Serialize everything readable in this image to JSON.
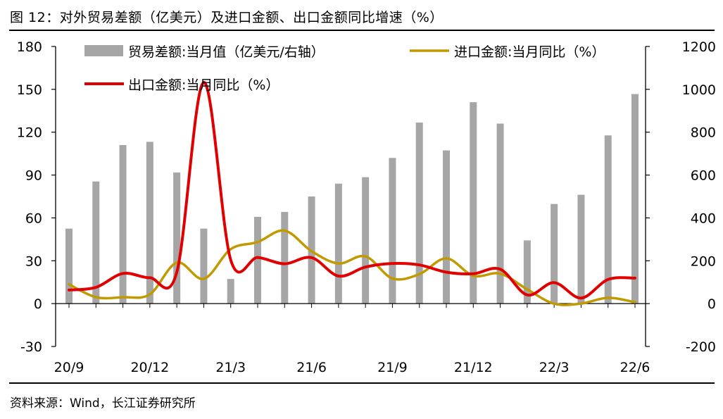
{
  "header": {
    "title": "图 12：对外贸易差额（亿美元）及进口金额、出口金额同比增速（%）"
  },
  "footer": {
    "source": "资料来源：Wind，长江证券研究所"
  },
  "colors": {
    "bars": "#a6a6a6",
    "import_line": "#c09a00",
    "export_line": "#e00000",
    "axis": "#000000"
  },
  "chart_data": {
    "type": "bar+line",
    "title": "对外贸易差额（亿美元）及进口金额、出口金额同比增速（%）",
    "categories": [
      "2020-09",
      "2020-10",
      "2020-11",
      "2020-12",
      "2021-01",
      "2021-02",
      "2021-03",
      "2021-04",
      "2021-05",
      "2021-06",
      "2021-07",
      "2021-08",
      "2021-09",
      "2021-10",
      "2021-11",
      "2021-12",
      "2022-01",
      "2022-02",
      "2022-03",
      "2022-04",
      "2022-05",
      "2022-06"
    ],
    "x_tick_labels": [
      {
        "index": 0,
        "label": "20/9"
      },
      {
        "index": 3,
        "label": "20/12"
      },
      {
        "index": 6,
        "label": "21/3"
      },
      {
        "index": 9,
        "label": "21/6"
      },
      {
        "index": 12,
        "label": "21/9"
      },
      {
        "index": 15,
        "label": "21/12"
      },
      {
        "index": 18,
        "label": "22/3"
      },
      {
        "index": 21,
        "label": "22/6"
      }
    ],
    "left_axis": {
      "min": -30,
      "max": 180,
      "ticks": [
        -30,
        0,
        30,
        60,
        90,
        120,
        150,
        180
      ]
    },
    "right_axis": {
      "min": -200,
      "max": 1200,
      "ticks": [
        -200,
        0,
        200,
        400,
        600,
        800,
        1000,
        1200
      ]
    },
    "series": [
      {
        "name": "贸易差额:当月值（亿美元/右轴）",
        "kind": "bar",
        "axis": "right",
        "values": [
          350,
          570,
          740,
          755,
          612,
          350,
          115,
          405,
          428,
          500,
          560,
          590,
          680,
          845,
          715,
          940,
          840,
          295,
          465,
          508,
          785,
          978
        ]
      },
      {
        "name": "进口金额:当月同比（%）",
        "kind": "line",
        "axis": "left",
        "values": [
          13.5,
          4.5,
          4.5,
          6.5,
          28.7,
          17.3,
          38.1,
          43.1,
          51.1,
          36.7,
          28.1,
          33.1,
          17.6,
          20.6,
          31.7,
          19.5,
          21.0,
          10.0,
          -0.1,
          0.0,
          4.1,
          1.0
        ]
      },
      {
        "name": "出口金额:当月同比（%）",
        "kind": "line",
        "axis": "left",
        "values": [
          9.5,
          11.4,
          21.1,
          18.1,
          22.0,
          154.9,
          30.6,
          32.3,
          27.9,
          32.2,
          19.3,
          25.6,
          28.1,
          27.1,
          22.0,
          20.9,
          24.1,
          6.1,
          14.7,
          3.9,
          16.9,
          17.9
        ]
      }
    ],
    "legend": [
      {
        "label": "贸易差额:当月值（亿美元/右轴）",
        "series": 0
      },
      {
        "label": "进口金额:当月同比（%）",
        "series": 1
      },
      {
        "label": "出口金额:当月同比（%）",
        "series": 2
      }
    ],
    "legend_position": "top"
  }
}
